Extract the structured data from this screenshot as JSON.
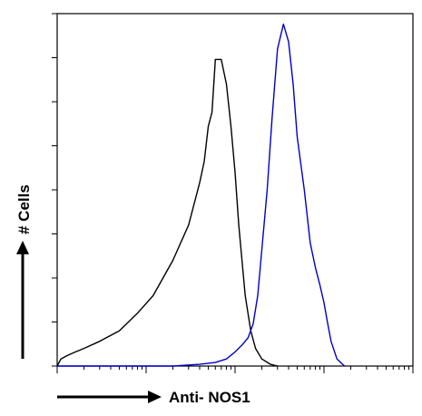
{
  "chart_data": {
    "type": "line",
    "title": "",
    "xlabel": "Anti- NOS1",
    "ylabel": "# Cells",
    "x_scale": "log",
    "xlim": [
      1,
      10000
    ],
    "ylim": [
      0,
      100
    ],
    "grid": false,
    "legend": "none",
    "series": [
      {
        "color": "#000000",
        "x": [
          1,
          1.1,
          1.3,
          1.6,
          2,
          3,
          5,
          8,
          12,
          20,
          30,
          40,
          45,
          50,
          55,
          60,
          70,
          80,
          90,
          100,
          110,
          130,
          150,
          170,
          200,
          250,
          300
        ],
        "y": [
          0,
          2,
          3,
          4,
          5,
          7,
          10,
          15,
          20,
          30,
          40,
          52,
          58,
          68,
          72,
          87,
          87,
          80,
          68,
          55,
          40,
          20,
          10,
          5,
          2,
          0.5,
          0
        ]
      },
      {
        "color": "#0000cc",
        "x": [
          1,
          20,
          40,
          60,
          80,
          100,
          120,
          140,
          160,
          180,
          200,
          230,
          260,
          300,
          350,
          400,
          450,
          500,
          600,
          700,
          800,
          900,
          1000,
          1100,
          1200,
          1400,
          1700
        ],
        "y": [
          0,
          0,
          0.5,
          1,
          2,
          4,
          6,
          8,
          12,
          20,
          33,
          50,
          70,
          90,
          97,
          92,
          80,
          65,
          50,
          35,
          28,
          23,
          18,
          12,
          7,
          2,
          0
        ]
      }
    ]
  }
}
